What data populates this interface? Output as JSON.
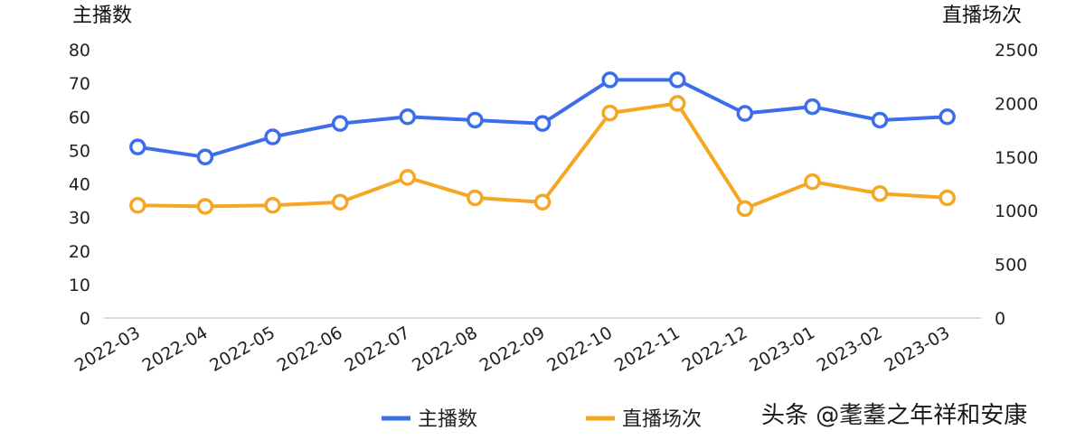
{
  "chart_data": {
    "type": "line",
    "categories": [
      "2022-03",
      "2022-04",
      "2022-05",
      "2022-06",
      "2022-07",
      "2022-08",
      "2022-09",
      "2022-10",
      "2022-11",
      "2022-12",
      "2023-01",
      "2023-02",
      "2023-03"
    ],
    "left_axis": {
      "title": "主播数",
      "ylim": [
        0,
        80
      ],
      "ticks": [
        0,
        10,
        20,
        30,
        40,
        50,
        60,
        70,
        80
      ]
    },
    "right_axis": {
      "title": "直播场次",
      "ylim": [
        0,
        2500
      ],
      "ticks": [
        0,
        500,
        1000,
        1500,
        2000,
        2500
      ]
    },
    "series": [
      {
        "name": "主播数",
        "axis": "left",
        "color": "#3b6ee8",
        "values": [
          51,
          48,
          54,
          58,
          60,
          59,
          58,
          71,
          71,
          61,
          63,
          59,
          60
        ]
      },
      {
        "name": "直播场次",
        "axis": "right",
        "color": "#f5a623",
        "values": [
          1050,
          1040,
          1050,
          1080,
          1310,
          1120,
          1080,
          1910,
          2000,
          1020,
          1270,
          1160,
          1120
        ]
      }
    ],
    "grid": false,
    "legend": "bottom"
  },
  "watermark": "头条 @耄耋之年祥和安康"
}
